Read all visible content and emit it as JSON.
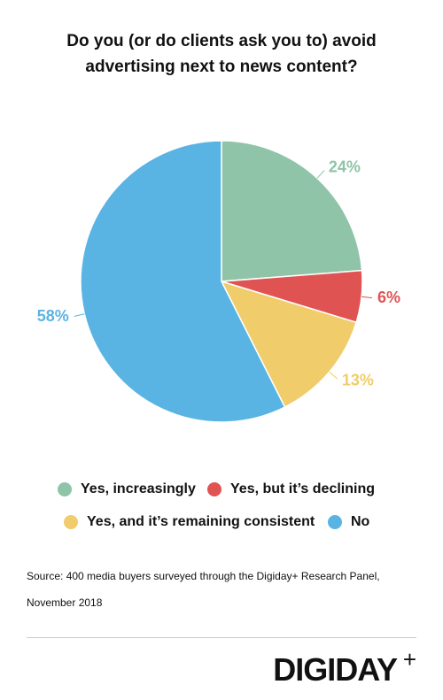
{
  "chart_data": {
    "type": "pie",
    "title": "Do you (or do clients ask you to) avoid advertising next to news content?",
    "categories": [
      "Yes, increasingly",
      "Yes, but it’s declining",
      "Yes, and it’s remaining consistent",
      "No"
    ],
    "values": [
      24,
      6,
      13,
      58
    ],
    "value_labels": [
      "24%",
      "6%",
      "13%",
      "58%"
    ],
    "colors": [
      "#8fc4a8",
      "#e05353",
      "#f0cc6a",
      "#5ab4e3"
    ]
  },
  "source": "Source: 400 media buyers surveyed through the Digiday+ Research Panel, November 2018",
  "logo": "DIGIDAY",
  "logo_mark": "+"
}
